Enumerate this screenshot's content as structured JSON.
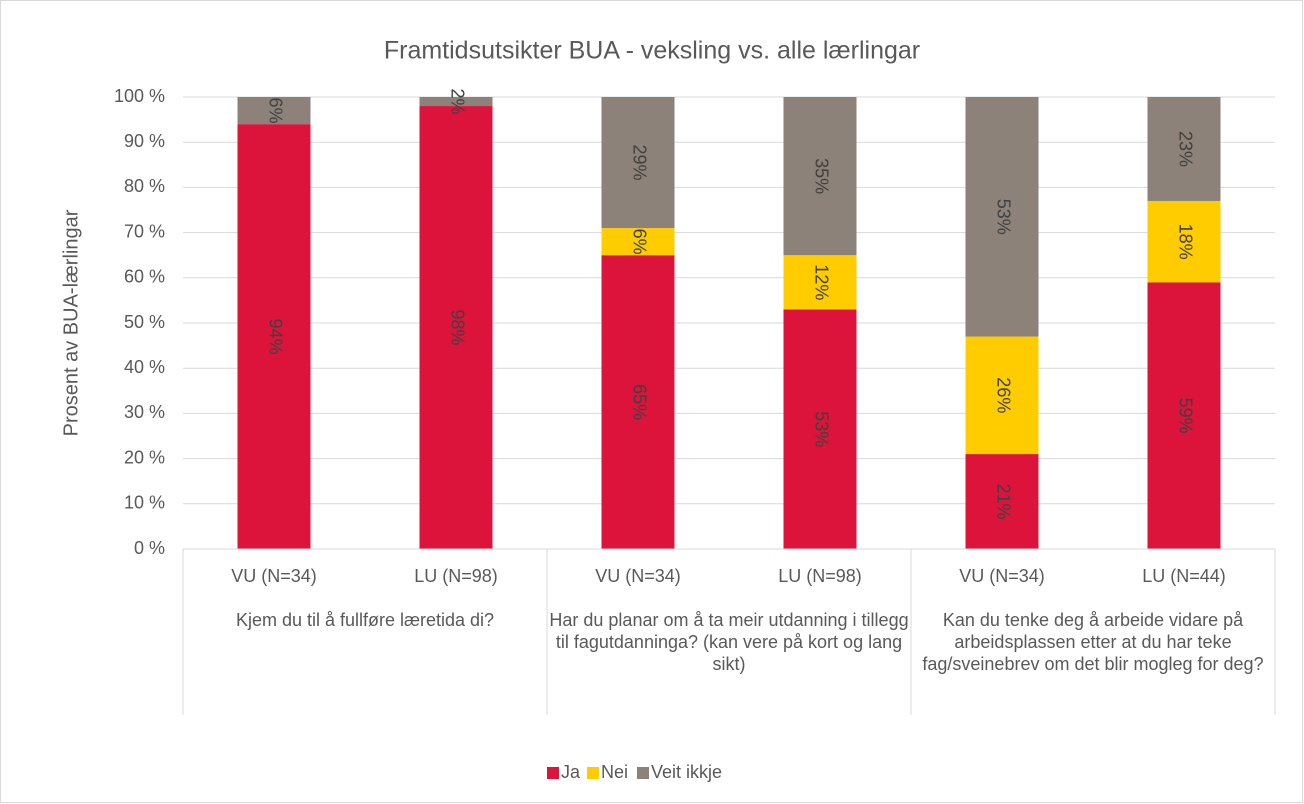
{
  "chart_data": {
    "type": "stacked_bar",
    "title": "Framtidsutsikter BUA - veksling vs. alle lærlingar",
    "y_label": "Prosent av BUA-lærlingar",
    "categories": [
      "VU (N=34)",
      "LU (N=98)",
      "VU (N=34)",
      "LU (N=98)",
      "VU (N=34)",
      "LU (N=44)"
    ],
    "groups": [
      "Kjem du til å fullføre læretida di?",
      "Har du planar om å ta meir utdanning i tillegg til fagutdanninga? (kan vere på kort og lang sikt)",
      "Kan du tenke deg å arbeide vidare på arbeidsplassen etter at du har teke fag/sveinebrev om det blir mogleg for deg?"
    ],
    "series": [
      {
        "name": "Ja",
        "color": "#dc143c",
        "values": [
          94,
          98,
          65,
          53,
          21,
          59
        ],
        "value_labels": [
          "94%",
          "98%",
          "65%",
          "53%",
          "21%",
          "59%"
        ]
      },
      {
        "name": "Nei",
        "color": "#ffcc00",
        "values": [
          null,
          null,
          6,
          12,
          26,
          18
        ],
        "value_labels": [
          null,
          null,
          "6%",
          "12%",
          "26%",
          "18%"
        ]
      },
      {
        "name": "Veit ikkje",
        "color": "#8c8279",
        "values": [
          6,
          2,
          29,
          35,
          53,
          23
        ],
        "value_labels": [
          "6%",
          "2%",
          "29%",
          "35%",
          "53%",
          "23%"
        ]
      }
    ],
    "ylim": [
      0,
      100
    ],
    "yticks": [
      {
        "value": 0,
        "label": "0 %"
      },
      {
        "value": 10,
        "label": "10 %"
      },
      {
        "value": 20,
        "label": "20 %"
      },
      {
        "value": 30,
        "label": "30 %"
      },
      {
        "value": 40,
        "label": "40 %"
      },
      {
        "value": 50,
        "label": "50 %"
      },
      {
        "value": 60,
        "label": "60 %"
      },
      {
        "value": 70,
        "label": "70 %"
      },
      {
        "value": 80,
        "label": "80 %"
      },
      {
        "value": 90,
        "label": "90 %"
      },
      {
        "value": 100,
        "label": "100 %"
      }
    ],
    "grid": true,
    "legend": "bottom"
  }
}
